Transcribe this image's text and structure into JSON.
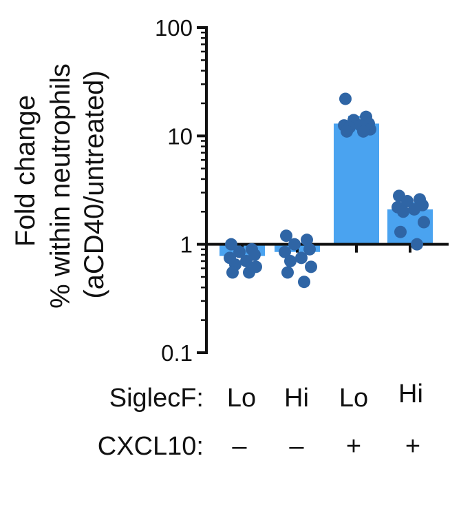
{
  "chart_data": {
    "type": "bar",
    "yscale": "log",
    "ylim": [
      0.1,
      100
    ],
    "yticks": [
      "100",
      "10",
      "1",
      "0.1"
    ],
    "ylabel_lines": [
      "Fold change",
      "% within neutrophils",
      "(aCD40/untreated)"
    ],
    "xlabel": "",
    "title": "",
    "row_labels": [
      "SiglecF:",
      "CXCL10:"
    ],
    "categories": [
      {
        "siglecf": "Lo",
        "cxcl10": "–"
      },
      {
        "siglecf": "Hi",
        "cxcl10": "–"
      },
      {
        "siglecf": "Lo",
        "cxcl10": "+"
      },
      {
        "siglecf": "Hi",
        "cxcl10": "+"
      }
    ],
    "values": [
      0.78,
      0.85,
      13.0,
      2.1
    ],
    "error_upper": [
      0.9,
      1.0,
      15.0,
      2.4
    ],
    "points": [
      [
        1.0,
        0.9,
        0.85,
        0.8,
        0.75,
        0.7,
        0.65,
        0.62,
        0.55,
        0.55
      ],
      [
        1.2,
        1.1,
        1.0,
        0.9,
        0.85,
        0.75,
        0.7,
        0.62,
        0.55,
        0.45
      ],
      [
        22,
        15,
        14,
        13,
        12.5,
        12.5,
        12,
        11.5,
        11,
        11
      ],
      [
        2.8,
        2.6,
        2.5,
        2.3,
        2.2,
        2.1,
        2.0,
        1.6,
        1.3,
        1.0
      ]
    ],
    "colors": {
      "bar": "#4aa3f0",
      "dot": "#2f65a5",
      "axis": "#111111"
    }
  }
}
